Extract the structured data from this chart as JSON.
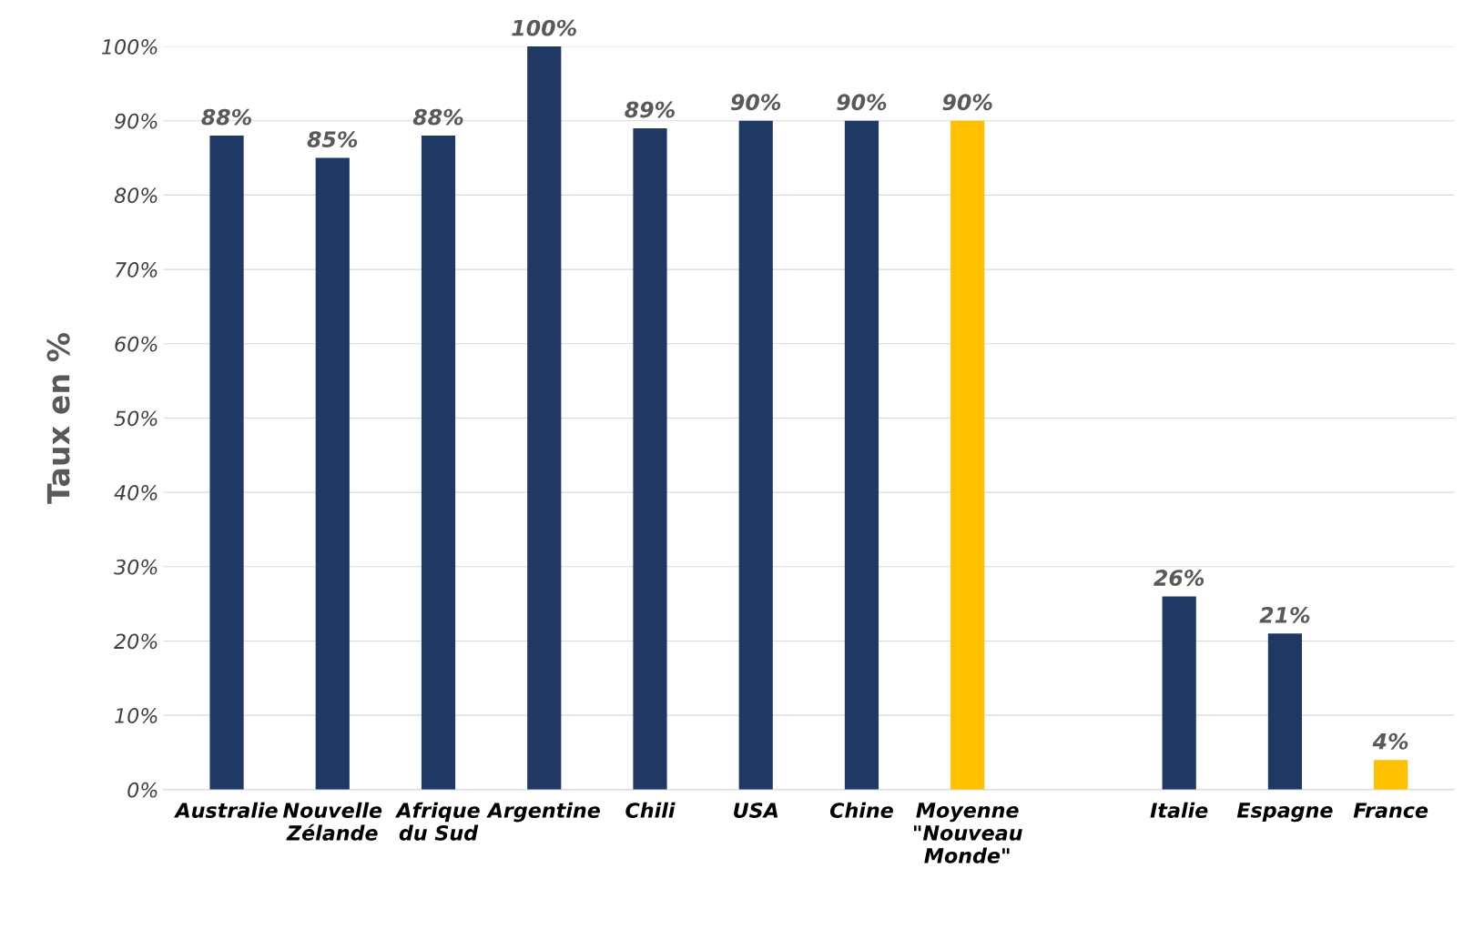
{
  "chart_data": {
    "type": "bar",
    "ylabel": "Taux en %",
    "categories": [
      "Australie",
      "Nouvelle\nZélande",
      "Afrique\ndu Sud",
      "Argentine",
      "Chili",
      "USA",
      "Chine",
      "Moyenne\n\"Nouveau\nMonde\"",
      null,
      "Italie",
      "Espagne",
      "France"
    ],
    "values": [
      88,
      85,
      88,
      100,
      89,
      90,
      90,
      90,
      null,
      26,
      21,
      4
    ],
    "colors": [
      "#203864",
      "#203864",
      "#203864",
      "#203864",
      "#203864",
      "#203864",
      "#203864",
      "#ffc000",
      "#203864",
      "#203864",
      "#203864",
      "#ffc000"
    ],
    "value_labels": [
      "88%",
      "85%",
      "88%",
      "100%",
      "89%",
      "90%",
      "90%",
      "90%",
      null,
      "26%",
      "21%",
      "4%"
    ],
    "ylim": [
      0,
      100
    ],
    "yticks": [
      {
        "value": 0,
        "label": "0%"
      },
      {
        "value": 10,
        "label": "10%"
      },
      {
        "value": 20,
        "label": "20%"
      },
      {
        "value": 30,
        "label": "30%"
      },
      {
        "value": 40,
        "label": "40%"
      },
      {
        "value": 50,
        "label": "50%"
      },
      {
        "value": 60,
        "label": "60%"
      },
      {
        "value": 70,
        "label": "70%"
      },
      {
        "value": 80,
        "label": "80%"
      },
      {
        "value": 90,
        "label": "90%"
      },
      {
        "value": 100,
        "label": "100%"
      }
    ],
    "grid": "y"
  }
}
